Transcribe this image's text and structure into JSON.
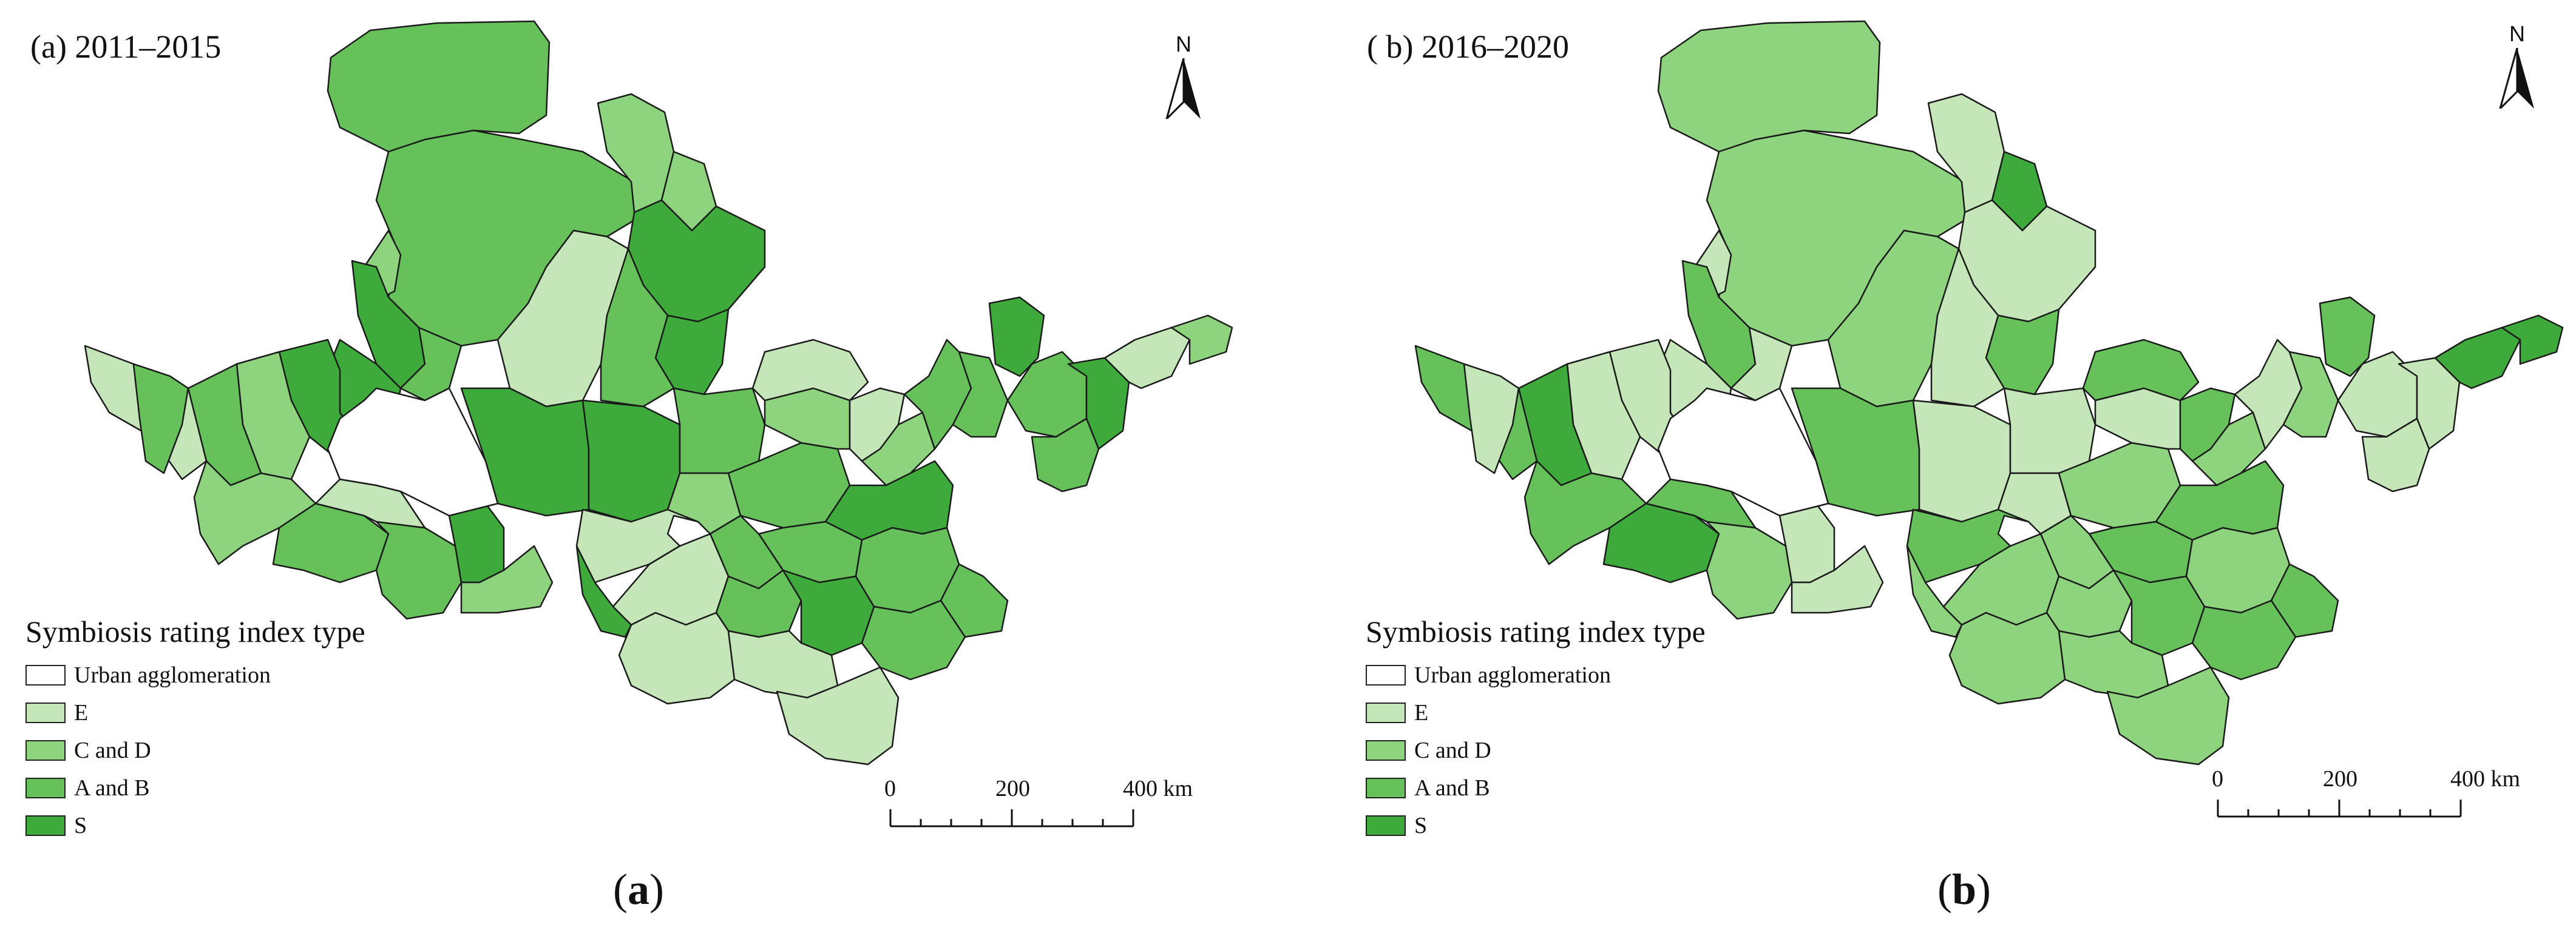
{
  "panels": [
    {
      "title": "(a) 2011–2015",
      "caption_open": "(",
      "caption_letter": "a",
      "caption_close": ")"
    },
    {
      "title": "( b) 2016–2020",
      "caption_open": "(",
      "caption_letter": "b",
      "caption_close": ")"
    }
  ],
  "north_label": "N",
  "legend": {
    "title": "Symbiosis rating index type",
    "items": [
      {
        "label": "Urban agglomeration",
        "color": "#ffffff"
      },
      {
        "label": "E",
        "color": "#c4e6b8"
      },
      {
        "label": "C and D",
        "color": "#8ed47e"
      },
      {
        "label": "A and B",
        "color": "#66c15a"
      },
      {
        "label": "S",
        "color": "#3faa3c"
      }
    ]
  },
  "scale": {
    "labels": [
      "0",
      "200",
      "400 km"
    ],
    "max_km": 400
  },
  "map_colors": {
    "outline": "#1a1a1a",
    "urban": "#ffffff"
  }
}
